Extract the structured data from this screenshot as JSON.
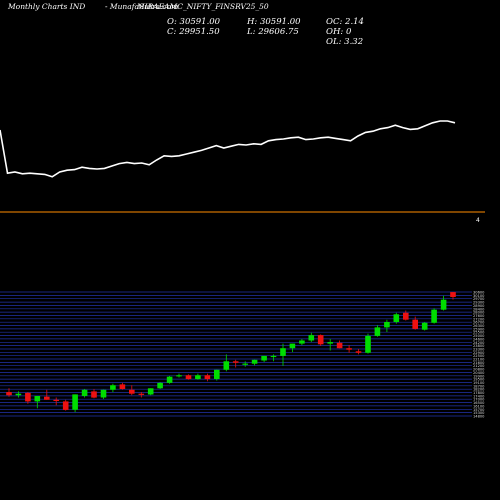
{
  "header": {
    "left": "Monthly Charts IND",
    "right": "- MunafaSutra.com",
    "symbol": "MIRAEAMC_NIFTY_FINSRV25_50"
  },
  "ohlc": {
    "open": "O: 30591.00",
    "high": "H: 30591.00",
    "oc": "OC: 2.14",
    "close": "C: 29951.50",
    "low": "L: 29606.75",
    "oh": "OH: 0",
    "ol": "OL: 3.32"
  },
  "divider_marker": "4",
  "colors": {
    "background": "#000000",
    "line": "#ffffff",
    "divider": "#ff8c00",
    "up": "#00dd00",
    "down": "#ee1111",
    "grid": "#2233aa"
  },
  "chart_data": [
    {
      "type": "line",
      "series": [
        {
          "values": [
            100,
            28,
            30,
            27,
            28,
            27,
            26,
            22,
            30,
            33,
            34,
            38,
            36,
            35,
            36,
            40,
            44,
            46,
            44,
            45,
            42,
            50,
            57,
            56,
            57,
            60,
            63,
            66,
            70,
            74,
            70,
            73,
            76,
            75,
            77,
            76,
            82,
            84,
            85,
            87,
            88,
            84,
            85,
            87,
            88,
            86,
            84,
            82,
            90,
            96,
            98,
            102,
            104,
            108,
            104,
            101,
            102,
            107,
            112,
            115,
            115,
            112
          ]
        }
      ]
    },
    {
      "type": "candlestick",
      "ylim": [
        14500,
        30600
      ],
      "y_tick_labels": [
        "30600",
        "30100",
        "29700",
        "29300",
        "28900",
        "28400",
        "28000",
        "27600",
        "27200",
        "26700",
        "26300",
        "25900",
        "25500",
        "25000",
        "24600",
        "24200",
        "23800",
        "23300",
        "22900",
        "22500",
        "22100",
        "21600",
        "21200",
        "20800",
        "20400",
        "19900",
        "19500",
        "19100",
        "18700",
        "18200",
        "17800",
        "17400",
        "17000",
        "16500",
        "16100",
        "15700",
        "15300",
        "14800"
      ],
      "candles": [
        {
          "o": 17600,
          "h": 18100,
          "l": 17000,
          "c": 17200
        },
        {
          "o": 17200,
          "h": 17700,
          "l": 16900,
          "c": 17400
        },
        {
          "o": 17500,
          "h": 17600,
          "l": 16100,
          "c": 16400
        },
        {
          "o": 16400,
          "h": 17100,
          "l": 15500,
          "c": 17100
        },
        {
          "o": 17000,
          "h": 17900,
          "l": 16600,
          "c": 16600
        },
        {
          "o": 16600,
          "h": 16900,
          "l": 15900,
          "c": 16500
        },
        {
          "o": 16400,
          "h": 16600,
          "l": 15200,
          "c": 15300
        },
        {
          "o": 15300,
          "h": 17300,
          "l": 15000,
          "c": 17300
        },
        {
          "o": 17100,
          "h": 18000,
          "l": 16900,
          "c": 17900
        },
        {
          "o": 17700,
          "h": 18000,
          "l": 16800,
          "c": 16900
        },
        {
          "o": 16900,
          "h": 17900,
          "l": 16700,
          "c": 17900
        },
        {
          "o": 17900,
          "h": 18700,
          "l": 17600,
          "c": 18500
        },
        {
          "o": 18600,
          "h": 18800,
          "l": 17900,
          "c": 18000
        },
        {
          "o": 17900,
          "h": 18500,
          "l": 17200,
          "c": 17400
        },
        {
          "o": 17400,
          "h": 17600,
          "l": 16900,
          "c": 17300
        },
        {
          "o": 17300,
          "h": 18100,
          "l": 17200,
          "c": 18100
        },
        {
          "o": 18100,
          "h": 18900,
          "l": 18000,
          "c": 18800
        },
        {
          "o": 18800,
          "h": 19700,
          "l": 18700,
          "c": 19600
        },
        {
          "o": 19700,
          "h": 20000,
          "l": 19500,
          "c": 19800
        },
        {
          "o": 19800,
          "h": 19900,
          "l": 19200,
          "c": 19300
        },
        {
          "o": 19300,
          "h": 20000,
          "l": 19200,
          "c": 19800
        },
        {
          "o": 19800,
          "h": 20000,
          "l": 19000,
          "c": 19300
        },
        {
          "o": 19300,
          "h": 20500,
          "l": 19100,
          "c": 20500
        },
        {
          "o": 20500,
          "h": 22500,
          "l": 20300,
          "c": 21600
        },
        {
          "o": 21600,
          "h": 21800,
          "l": 20800,
          "c": 21400
        },
        {
          "o": 21300,
          "h": 21600,
          "l": 20900,
          "c": 21300
        },
        {
          "o": 21300,
          "h": 21800,
          "l": 21100,
          "c": 21800
        },
        {
          "o": 21700,
          "h": 22300,
          "l": 21500,
          "c": 22300
        },
        {
          "o": 22200,
          "h": 22500,
          "l": 21600,
          "c": 22300
        },
        {
          "o": 22300,
          "h": 23900,
          "l": 21000,
          "c": 23300
        },
        {
          "o": 23300,
          "h": 23900,
          "l": 22800,
          "c": 23900
        },
        {
          "o": 23900,
          "h": 24500,
          "l": 23700,
          "c": 24300
        },
        {
          "o": 24300,
          "h": 25300,
          "l": 24100,
          "c": 25000
        },
        {
          "o": 25000,
          "h": 25100,
          "l": 23600,
          "c": 23800
        },
        {
          "o": 23900,
          "h": 24500,
          "l": 23000,
          "c": 24100
        },
        {
          "o": 24000,
          "h": 24300,
          "l": 23300,
          "c": 23300
        },
        {
          "o": 23300,
          "h": 23700,
          "l": 22700,
          "c": 23100
        },
        {
          "o": 22900,
          "h": 23200,
          "l": 22500,
          "c": 22700
        },
        {
          "o": 22700,
          "h": 25200,
          "l": 22600,
          "c": 24900
        },
        {
          "o": 24900,
          "h": 26300,
          "l": 24800,
          "c": 26000
        },
        {
          "o": 26000,
          "h": 27000,
          "l": 25400,
          "c": 26700
        },
        {
          "o": 26700,
          "h": 27900,
          "l": 26500,
          "c": 27700
        },
        {
          "o": 27900,
          "h": 28200,
          "l": 26900,
          "c": 27000
        },
        {
          "o": 27000,
          "h": 27400,
          "l": 25700,
          "c": 25800
        },
        {
          "o": 25700,
          "h": 26700,
          "l": 25600,
          "c": 26600
        },
        {
          "o": 26600,
          "h": 28500,
          "l": 26500,
          "c": 28300
        },
        {
          "o": 28300,
          "h": 30100,
          "l": 28200,
          "c": 29600
        },
        {
          "o": 30591,
          "h": 30591,
          "l": 29607,
          "c": 29952
        }
      ]
    }
  ]
}
